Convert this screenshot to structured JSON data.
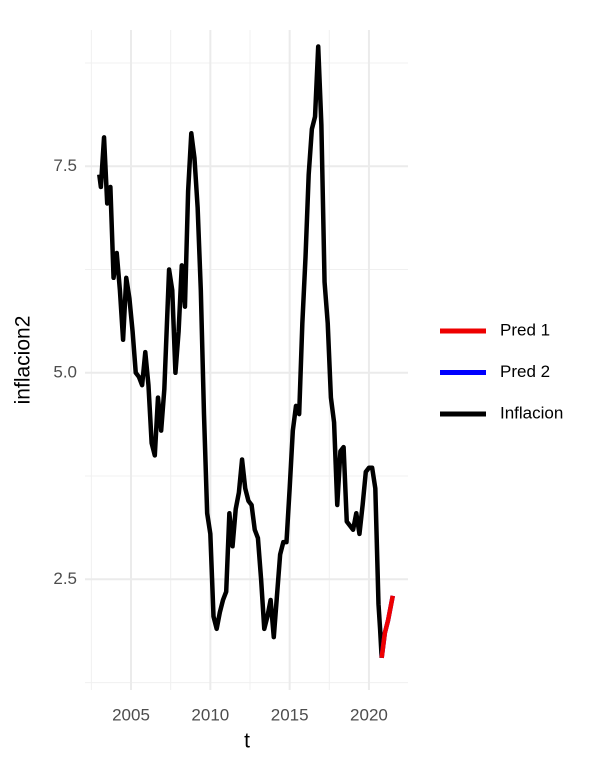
{
  "chart_data": {
    "type": "line",
    "x_label": "t",
    "y_label": "inflacion2",
    "xlim": [
      2002.1,
      2022.46
    ],
    "ylim": [
      1.16,
      9.15
    ],
    "xticks": [
      2005,
      2010,
      2015,
      2020
    ],
    "yticks": [
      2.5,
      {
        "value": 5,
        "label": "5.0"
      },
      7.5
    ],
    "grid": true,
    "legend": "right",
    "series": [
      {
        "name": "Pred 1",
        "color": "#ee0000",
        "x": [
          2020.8,
          2021.0,
          2021.2,
          2021.5
        ],
        "values": [
          1.55,
          1.85,
          2.0,
          2.3
        ]
      },
      {
        "name": "Pred 2",
        "color": "#0000ff",
        "x": [
          2020.8,
          2021.0,
          2021.2,
          2021.5
        ],
        "values": [
          1.55,
          1.85,
          2.0,
          2.3
        ]
      },
      {
        "name": "Inflacion",
        "color": "#000000",
        "x": [
          2003.0,
          2003.1,
          2003.3,
          2003.5,
          2003.7,
          2003.9,
          2004.1,
          2004.3,
          2004.5,
          2004.7,
          2004.9,
          2005.1,
          2005.3,
          2005.5,
          2005.7,
          2005.9,
          2006.1,
          2006.3,
          2006.5,
          2006.7,
          2006.9,
          2007.1,
          2007.4,
          2007.6,
          2007.8,
          2008.0,
          2008.2,
          2008.4,
          2008.6,
          2008.8,
          2009.0,
          2009.2,
          2009.4,
          2009.6,
          2009.8,
          2010.0,
          2010.2,
          2010.4,
          2010.6,
          2010.8,
          2011.0,
          2011.2,
          2011.4,
          2011.6,
          2011.8,
          2012.0,
          2012.2,
          2012.4,
          2012.6,
          2012.8,
          2013.0,
          2013.2,
          2013.4,
          2013.6,
          2013.8,
          2014.0,
          2014.2,
          2014.4,
          2014.6,
          2014.8,
          2015.0,
          2015.2,
          2015.4,
          2015.6,
          2015.8,
          2016.0,
          2016.2,
          2016.4,
          2016.6,
          2016.8,
          2017.0,
          2017.2,
          2017.4,
          2017.6,
          2017.8,
          2018.0,
          2018.2,
          2018.4,
          2018.6,
          2018.8,
          2019.0,
          2019.2,
          2019.4,
          2019.6,
          2019.8,
          2020.0,
          2020.2,
          2020.4,
          2020.6,
          2020.7,
          2020.8
        ],
        "values": [
          7.4,
          7.25,
          7.85,
          7.05,
          7.25,
          6.15,
          6.45,
          6.0,
          5.4,
          6.15,
          5.9,
          5.5,
          5.0,
          4.95,
          4.85,
          5.25,
          4.85,
          4.15,
          4.0,
          4.7,
          4.3,
          4.8,
          6.25,
          6.0,
          5.0,
          5.5,
          6.3,
          5.8,
          7.2,
          7.9,
          7.6,
          7.0,
          6.0,
          4.5,
          3.3,
          3.05,
          2.05,
          1.9,
          2.1,
          2.25,
          2.35,
          3.3,
          2.9,
          3.35,
          3.55,
          3.95,
          3.6,
          3.45,
          3.4,
          3.1,
          3.0,
          2.5,
          1.9,
          2.05,
          2.25,
          1.8,
          2.3,
          2.8,
          2.95,
          2.95,
          3.6,
          4.3,
          4.6,
          4.5,
          5.6,
          6.4,
          7.4,
          7.95,
          8.1,
          8.95,
          8.0,
          6.1,
          5.6,
          4.7,
          4.4,
          3.4,
          4.05,
          4.1,
          3.2,
          3.15,
          3.1,
          3.3,
          3.05,
          3.4,
          3.8,
          3.85,
          3.85,
          3.6,
          2.2,
          1.9,
          1.55
        ]
      }
    ]
  }
}
